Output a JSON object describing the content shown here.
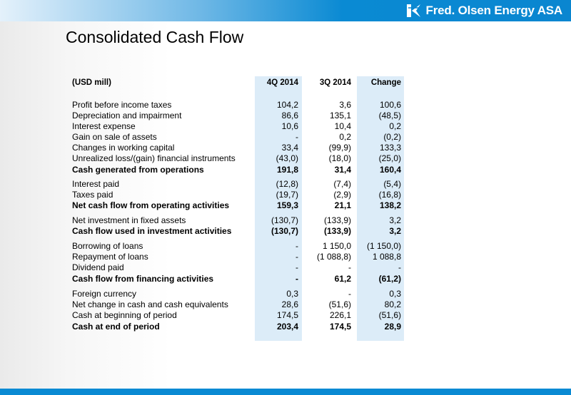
{
  "header": {
    "logo_text": "Fred. Olsen Energy ASA",
    "bar_color": "#0a8ad3"
  },
  "slide": {
    "title": "Consolidated Cash Flow"
  },
  "table": {
    "unit_label": "(USD mill)",
    "columns": [
      "4Q 2014",
      "3Q 2014",
      "Change"
    ],
    "highlight_color": "#dcecf8",
    "rows": [
      {
        "label": "Profit before income taxes",
        "values": [
          "104,2",
          "3,6",
          "100,6"
        ],
        "bold": false
      },
      {
        "label": "Depreciation and impairment",
        "values": [
          "86,6",
          "135,1",
          "(48,5)"
        ],
        "bold": false
      },
      {
        "label": "Interest expense",
        "values": [
          "10,6",
          "10,4",
          "0,2"
        ],
        "bold": false
      },
      {
        "label": "Gain on sale of assets",
        "values": [
          "-",
          "0,2",
          "(0,2)"
        ],
        "bold": false
      },
      {
        "label": "Changes in working capital",
        "values": [
          "33,4",
          "(99,9)",
          "133,3"
        ],
        "bold": false
      },
      {
        "label": "Unrealized loss/(gain) financial instruments",
        "values": [
          "(43,0)",
          "(18,0)",
          "(25,0)"
        ],
        "bold": false
      },
      {
        "label": "Cash generated from operations",
        "values": [
          "191,8",
          "31,4",
          "160,4"
        ],
        "bold": true
      },
      {
        "label": "Interest paid",
        "values": [
          "(12,8)",
          "(7,4)",
          "(5,4)"
        ],
        "bold": false
      },
      {
        "label": "Taxes paid",
        "values": [
          "(19,7)",
          "(2,9)",
          "(16,8)"
        ],
        "bold": false
      },
      {
        "label": "Net cash flow from operating activities",
        "values": [
          "159,3",
          "21,1",
          "138,2"
        ],
        "bold": true
      },
      {
        "label": "Net investment in fixed assets",
        "values": [
          "(130,7)",
          "(133,9)",
          "3,2"
        ],
        "bold": false
      },
      {
        "label": "Cash flow used in investment activities",
        "values": [
          "(130,7)",
          "(133,9)",
          "3,2"
        ],
        "bold": true
      },
      {
        "label": "Borrowing of loans",
        "values": [
          "-",
          "1 150,0",
          "(1 150,0)"
        ],
        "bold": false
      },
      {
        "label": "Repayment of loans",
        "values": [
          "-",
          "(1 088,8)",
          "1 088,8"
        ],
        "bold": false
      },
      {
        "label": "Dividend paid",
        "values": [
          "-",
          "-",
          "-"
        ],
        "bold": false
      },
      {
        "label": "Cash flow from financing activities",
        "values": [
          "-",
          "61,2",
          "(61,2)"
        ],
        "bold": true
      },
      {
        "label": "Foreign currency",
        "values": [
          "0,3",
          "-",
          "0,3"
        ],
        "bold": false
      },
      {
        "label": "Net change in cash and cash equivalents",
        "values": [
          "28,6",
          "(51,6)",
          "80,2"
        ],
        "bold": false
      },
      {
        "label": "Cash at beginning of period",
        "values": [
          "174,5",
          "226,1",
          "(51,6)"
        ],
        "bold": false
      },
      {
        "label": "Cash at end of period",
        "values": [
          "203,4",
          "174,5",
          "28,9"
        ],
        "bold": true
      }
    ]
  }
}
